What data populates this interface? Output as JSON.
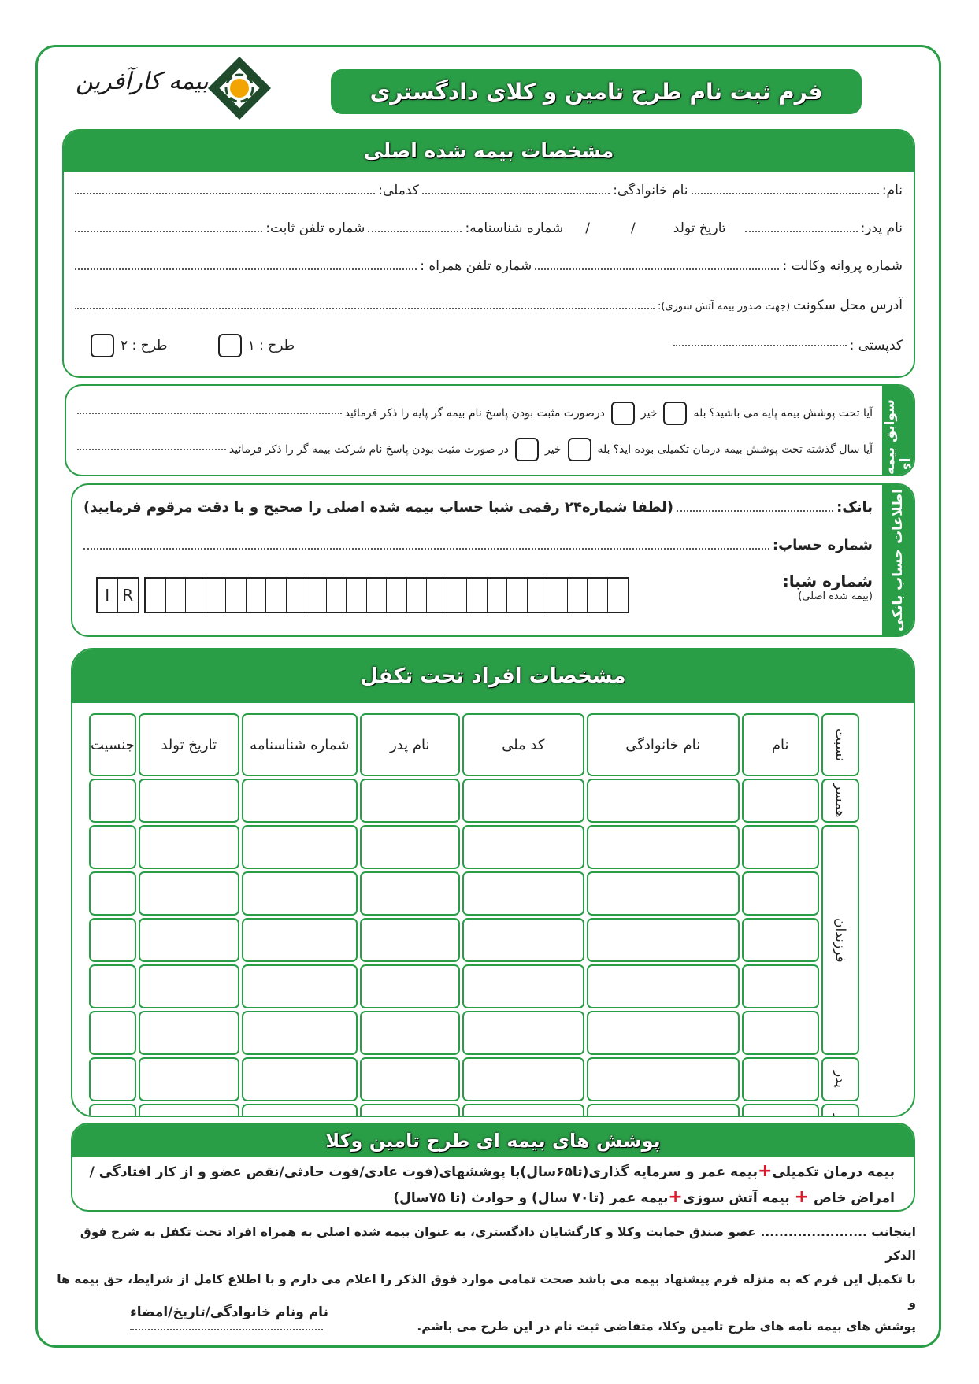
{
  "header": {
    "logo_text": "بیمه کارآفرین",
    "title": "فرم ثبت نام طرح تامین و کلای دادگستری"
  },
  "colors": {
    "brand_green": "#2a9d47",
    "plus_red": "#e0182d",
    "logo_dark_green": "#1f4a2b",
    "logo_gold": "#f2a500"
  },
  "main_insured": {
    "title": "مشخصات بیمه شده اصلی",
    "name": "نام:",
    "family": "نام خانوادگی:",
    "national_code": "کدملی:",
    "father": "نام پدر:",
    "birth_date": "تاریخ تولد",
    "date_sep": "/",
    "id_number": "شماره شناسنامه:",
    "landline": "شماره تلفن ثابت:",
    "license": "شماره پروانه وکالت :",
    "mobile": "شماره تلفن همراه :",
    "address": "آدرس محل سکونت",
    "address_note": "(جهت صدور بیمه آتش سوزی):",
    "postal": "کدپستی :",
    "plan1": "طرح : ۱",
    "plan2": "طرح : ۲"
  },
  "history": {
    "title": "سوابق بیمه ای",
    "q1": "آیا تحت پوشش بیمه پایه می باشید؟",
    "yes": "بله",
    "no": "خیر",
    "q1_follow": "درصورت مثبت بودن پاسخ نام بیمه گر پایه را ذکر فرمائید",
    "q2": "آیا سال گذشته تحت پوشش بیمه درمان تکمیلی بوده اید؟",
    "q2_follow": "در صورت مثبت بودن پاسخ نام شرکت بیمه گر را ذکر فرمائید"
  },
  "bank": {
    "title": "اطلاعات حساب بانکی",
    "bank": "بانک:",
    "bank_note": "(لطفا شماره۲۴ رقمی شبا حساب بیمه شده اصلی را صحیح و با دقت مرقوم فرمایید)",
    "account": "شماره حساب:",
    "iban": "شماره شبا:",
    "iban_note": "(بیمه شده اصلی)",
    "iban_prefix": [
      "I",
      "R"
    ]
  },
  "dependents": {
    "title": "مشخصات افراد تحت تکفل",
    "columns": [
      "نسبت",
      "نام",
      "نام خانوادگی",
      "کد ملی",
      "نام پدر",
      "شماره شناسنامه",
      "تاریخ تولد",
      "جنسیت"
    ],
    "relations": {
      "spouse": "همسر",
      "children": "فرزندان",
      "father": "پدر",
      "mother": "مادر"
    }
  },
  "coverage": {
    "title": "پوشش های بیمه ای طرح تامین وکلا",
    "l1a": "بیمه درمان تکمیلی",
    "l1b": "بیمه عمر و سرمایه گذاری(تا۶۵سال)با پوششهای(فوت عادی/فوت حادثی/نقص عضو و از کار افتادگی /",
    "l2a": "امراض خاص",
    "l2b": "بیمه آتش سوزی",
    "l2c": "بیمه عمر (تا۷۰ سال) و حوادث (تا ۷۵سال)",
    "plus": "+"
  },
  "declaration": {
    "text1": "اینجانب ....................... عضو صندق حمایت وکلا و کارگشایان دادگستری، به عنوان بیمه شده اصلی به همراه افراد تحت تکفل به شرح فوق الذکر",
    "text2": "با تکمیل این فرم که به منزله فرم پیشنهاد بیمه می باشد صحت تمامی موارد فوق الذکر را اعلام می دارم و با اطلاع کامل از شرایط، حق بیمه ها و",
    "text3": "پوشش های بیمه نامه های طرح تامین وکلا، متقاضی ثبت نام در این طرح می باشم.",
    "signature": "نام ونام خانوادگی/تاریخ/امضاء"
  }
}
